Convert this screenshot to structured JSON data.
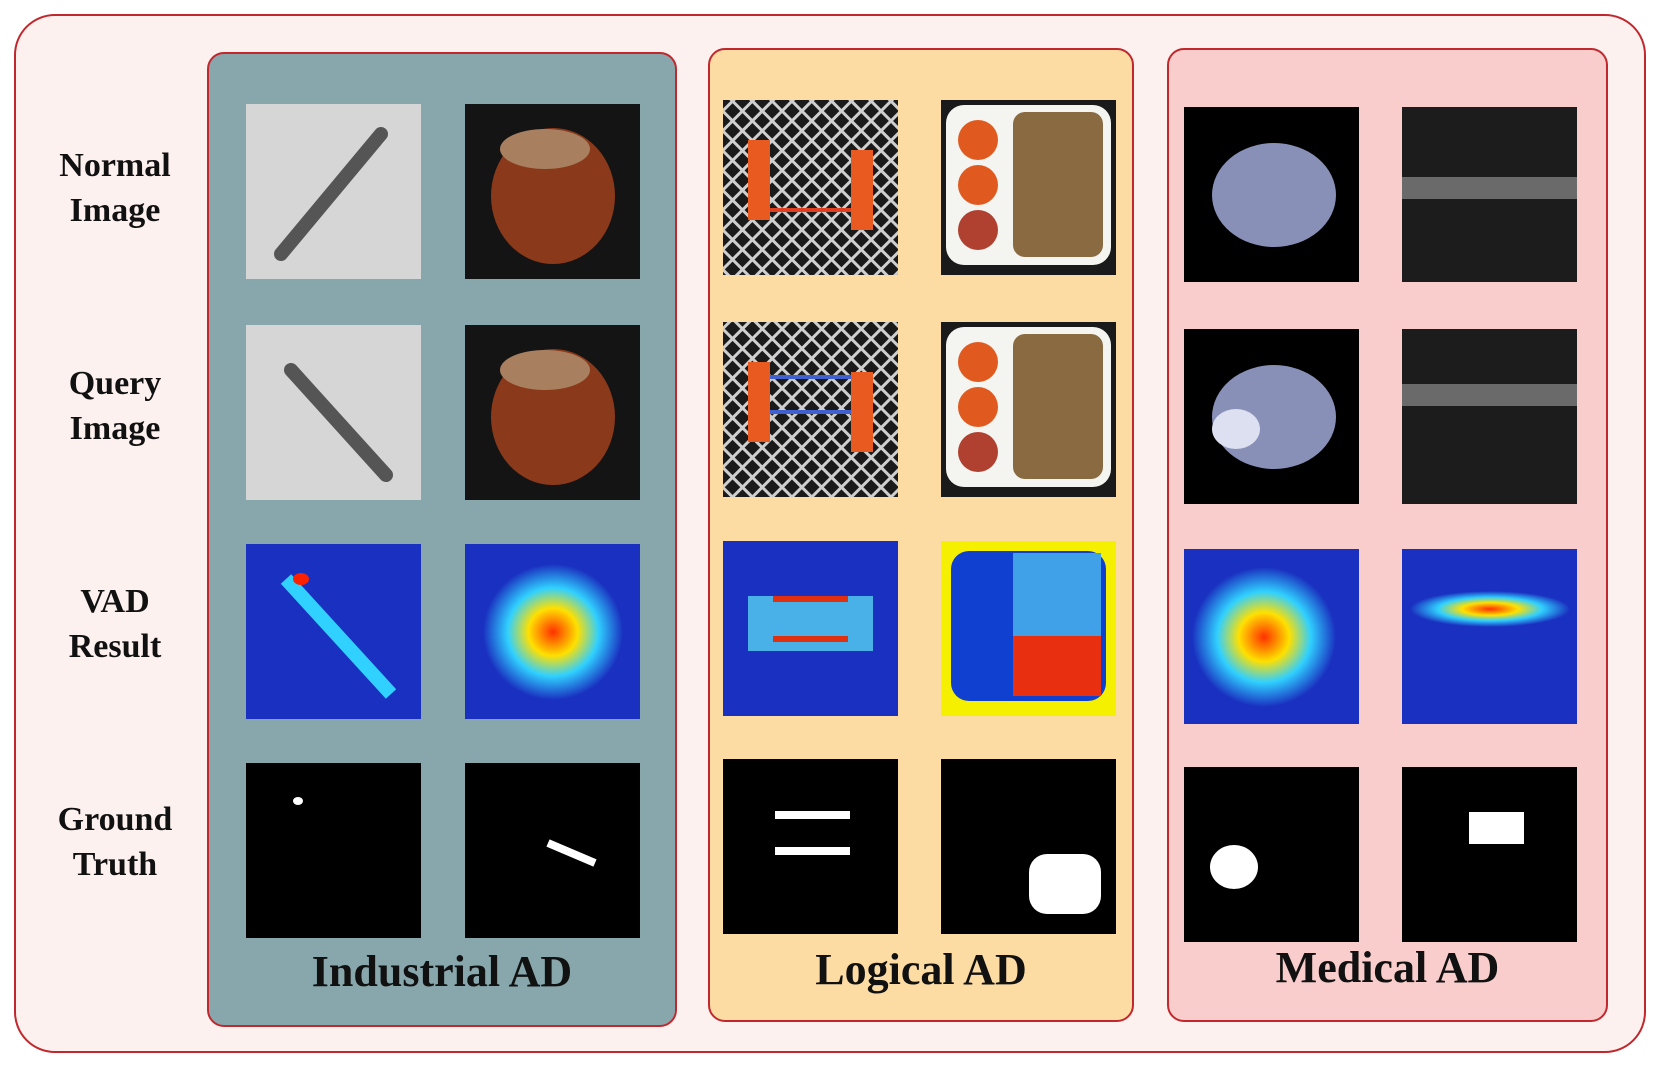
{
  "row_labels": [
    [
      "Normal",
      "Image"
    ],
    [
      "Query",
      "Image"
    ],
    [
      "VAD",
      "Result"
    ],
    [
      "Ground",
      "Truth"
    ]
  ],
  "panels": [
    {
      "title": "Industrial AD"
    },
    {
      "title": "Logical AD"
    },
    {
      "title": "Medical AD"
    }
  ]
}
